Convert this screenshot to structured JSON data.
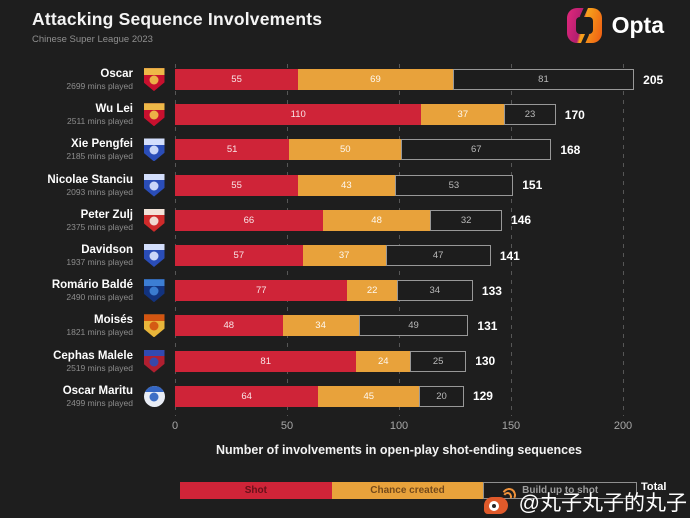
{
  "header": {
    "title": "Attacking Sequence Involvements",
    "subtitle": "Chinese Super League 2023",
    "brand": "Opta"
  },
  "chart_data": {
    "type": "bar",
    "orientation": "horizontal",
    "stacked": true,
    "title": "Attacking Sequence Involvements",
    "subtitle": "Chinese Super League 2023",
    "xlabel": "Number of involvements in open-play shot-ending sequences",
    "xticks": [
      0,
      50,
      100,
      150,
      200
    ],
    "xlim": [
      0,
      230
    ],
    "grid": "dashed-vertical",
    "legend_position": "bottom",
    "total_label": "Total",
    "series_names": [
      "Shot",
      "Chance created",
      "Build up to shot"
    ],
    "legend": [
      {
        "label": "Shot",
        "color": "#cf2438",
        "style": "filled"
      },
      {
        "label": "Chance created",
        "color": "#e8a23b",
        "style": "filled"
      },
      {
        "label": "Build up to shot",
        "color": "outline",
        "style": "outline"
      }
    ],
    "rows": [
      {
        "player": "Oscar",
        "mins": "2699 mins played",
        "shot": 55,
        "chance_created": 69,
        "build_up_to_shot": 81,
        "total": 205,
        "crest": {
          "shape": "shield",
          "primary": "#c8102e",
          "secondary": "#f0c24a"
        }
      },
      {
        "player": "Wu Lei",
        "mins": "2511 mins played",
        "shot": 110,
        "chance_created": 37,
        "build_up_to_shot": 23,
        "total": 170,
        "crest": {
          "shape": "shield",
          "primary": "#c8102e",
          "secondary": "#f0c24a"
        }
      },
      {
        "player": "Xie Pengfei",
        "mins": "2185 mins played",
        "shot": 51,
        "chance_created": 50,
        "build_up_to_shot": 67,
        "total": 168,
        "crest": {
          "shape": "shield",
          "primary": "#2a4db8",
          "secondary": "#dce6ff"
        }
      },
      {
        "player": "Nicolae Stanciu",
        "mins": "2093 mins played",
        "shot": 55,
        "chance_created": 43,
        "build_up_to_shot": 53,
        "total": 151,
        "crest": {
          "shape": "shield",
          "primary": "#2a4db8",
          "secondary": "#dce6ff"
        }
      },
      {
        "player": "Peter Zulj",
        "mins": "2375 mins played",
        "shot": 66,
        "chance_created": 48,
        "build_up_to_shot": 32,
        "total": 146,
        "crest": {
          "shape": "shield",
          "primary": "#cf2a2a",
          "secondary": "#f3ece2"
        }
      },
      {
        "player": "Davidson",
        "mins": "1937 mins played",
        "shot": 57,
        "chance_created": 37,
        "build_up_to_shot": 47,
        "total": 141,
        "crest": {
          "shape": "shield",
          "primary": "#2a4db8",
          "secondary": "#dce6ff"
        }
      },
      {
        "player": "Romário Baldé",
        "mins": "2490 mins played",
        "shot": 77,
        "chance_created": 22,
        "build_up_to_shot": 34,
        "total": 133,
        "crest": {
          "shape": "shield",
          "primary": "#12337f",
          "secondary": "#3f83d9"
        }
      },
      {
        "player": "Moisés",
        "mins": "1821 mins played",
        "shot": 48,
        "chance_created": 34,
        "build_up_to_shot": 49,
        "total": 131,
        "crest": {
          "shape": "shield",
          "primary": "#e8b53a",
          "secondary": "#d2500f"
        }
      },
      {
        "player": "Cephas Malele",
        "mins": "2519 mins played",
        "shot": 81,
        "chance_created": 24,
        "build_up_to_shot": 25,
        "total": 130,
        "crest": {
          "shape": "shield",
          "primary": "#b01f30",
          "secondary": "#2a4db8"
        }
      },
      {
        "player": "Oscar Maritu",
        "mins": "2499 mins played",
        "shot": 64,
        "chance_created": 45,
        "build_up_to_shot": 20,
        "total": 129,
        "crest": {
          "shape": "round",
          "primary": "#e9edf5",
          "secondary": "#2a5fc0"
        }
      }
    ]
  },
  "colors": {
    "background": "#1e1e1e",
    "shot": "#cf2438",
    "chance_created": "#e8a23b",
    "build_up_fill": "#1d1d1d",
    "build_up_border": "#989898",
    "gridline": "#565656",
    "tick_text": "#a7a7a7",
    "muted_text": "#8d8d8d"
  },
  "watermark": {
    "icon": "weibo-icon",
    "text": "@丸子丸子的丸子"
  }
}
